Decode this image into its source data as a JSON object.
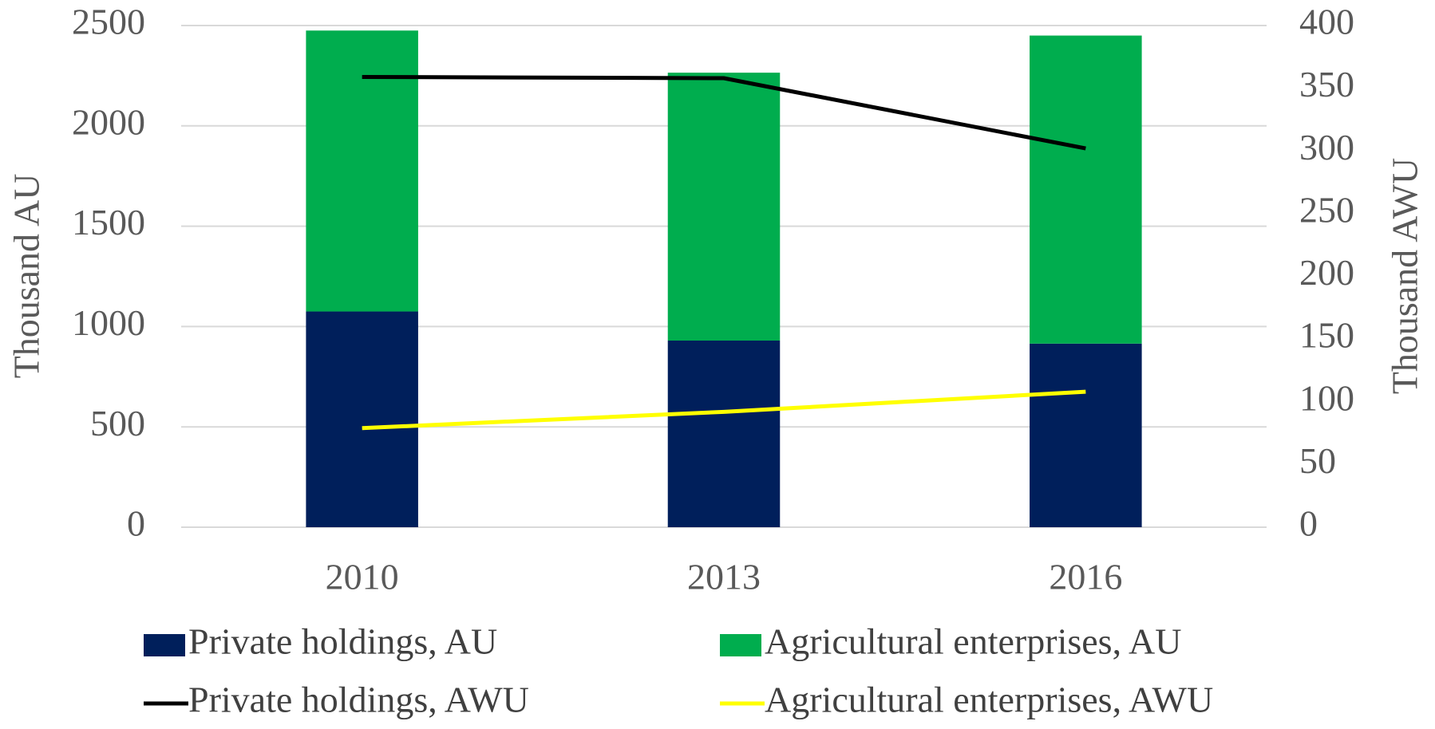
{
  "chart_data": {
    "type": "bar",
    "stacked": true,
    "categories": [
      "2010",
      "2013",
      "2016"
    ],
    "y_label": "Thousand AU",
    "y2_label": "Thousand AWU",
    "ylim": [
      0,
      2500
    ],
    "yticks": [
      0,
      500,
      1000,
      1500,
      2000,
      2500
    ],
    "y2lim": [
      0,
      400
    ],
    "y2ticks": [
      0,
      50,
      100,
      150,
      200,
      250,
      300,
      350,
      400
    ],
    "grid": true,
    "legend": "bottom",
    "series": [
      {
        "name": "Private holdings, AU",
        "type": "bar",
        "color": "#001f5b",
        "values": [
          1075,
          930,
          915
        ]
      },
      {
        "name": "Agricultural enterprises, AU",
        "type": "bar",
        "color": "#00ad4e",
        "values": [
          1400,
          1335,
          1535
        ]
      },
      {
        "name": "Private holdings, AWU",
        "type": "line",
        "axis": "y2",
        "color": "#000000",
        "values": [
          359,
          358,
          302
        ]
      },
      {
        "name": "Agricultural enterprises, AWU",
        "type": "line",
        "axis": "y2",
        "color": "#ffff00",
        "values": [
          79,
          92,
          108
        ]
      }
    ]
  }
}
